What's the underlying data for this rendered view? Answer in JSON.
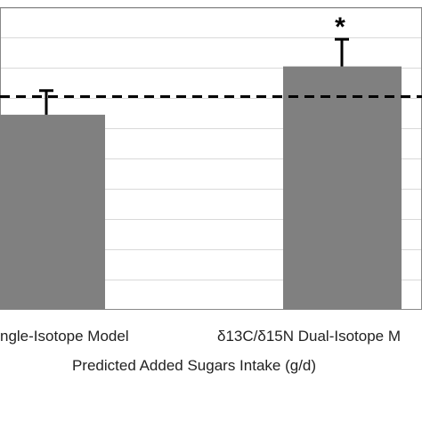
{
  "chart_data": {
    "type": "bar",
    "categories": [
      "ngle-Isotope Model",
      "δ13C/δ15N Dual-Isotope M"
    ],
    "values": [
      64.5,
      80.5
    ],
    "error_upper": [
      72.5,
      89.5
    ],
    "reference_line": 70.5,
    "ylim": [
      0,
      100
    ],
    "y_gridlines": [
      10,
      20,
      30,
      40,
      50,
      60,
      70,
      80,
      90,
      100
    ],
    "grid": true,
    "significance_markers": [
      "",
      "*"
    ],
    "xlabel": "Predicted Added Sugars Intake (g/d)",
    "ylabel": "",
    "title": "",
    "colors": {
      "bar": "#808080",
      "error": "#000000",
      "reference": "#000000",
      "grid": "#d9d9d9"
    }
  }
}
